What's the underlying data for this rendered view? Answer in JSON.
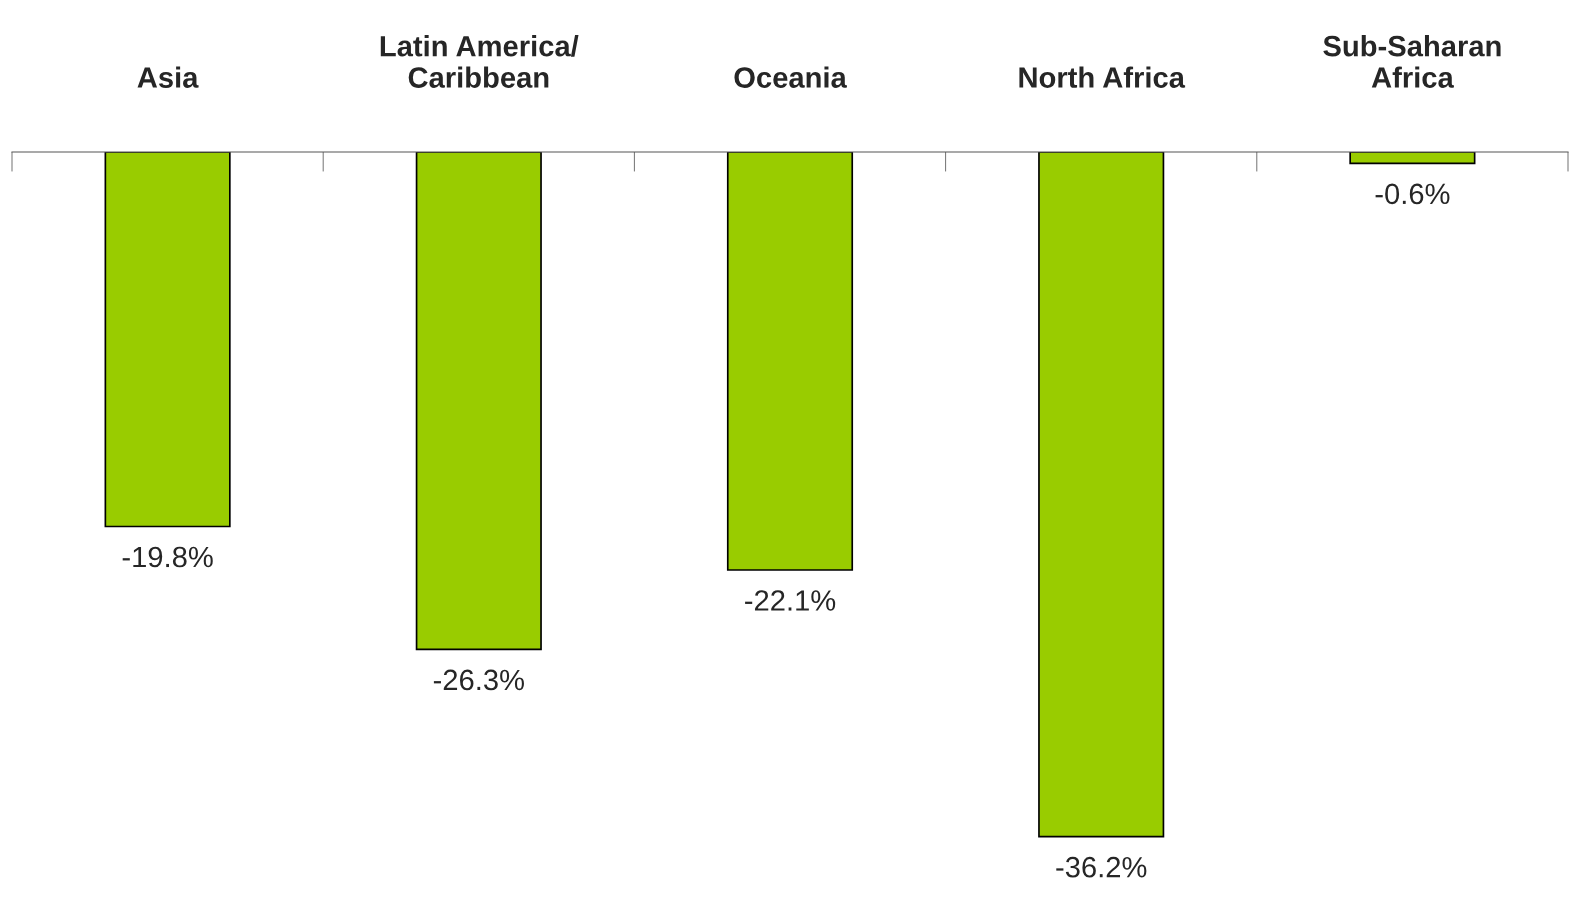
{
  "chart_data": {
    "type": "bar",
    "categories": [
      "Asia",
      "Latin America/\nCaribbean",
      "Oceania",
      "North Africa",
      "Sub-Saharan\nAfrica"
    ],
    "values": [
      -19.8,
      -26.3,
      -22.1,
      -36.2,
      -0.6
    ],
    "value_labels": [
      "-19.8%",
      "-26.3%",
      "-22.1%",
      "-36.2%",
      "-0.6%"
    ],
    "color": "#99cc00",
    "grid": false,
    "legend": false
  }
}
